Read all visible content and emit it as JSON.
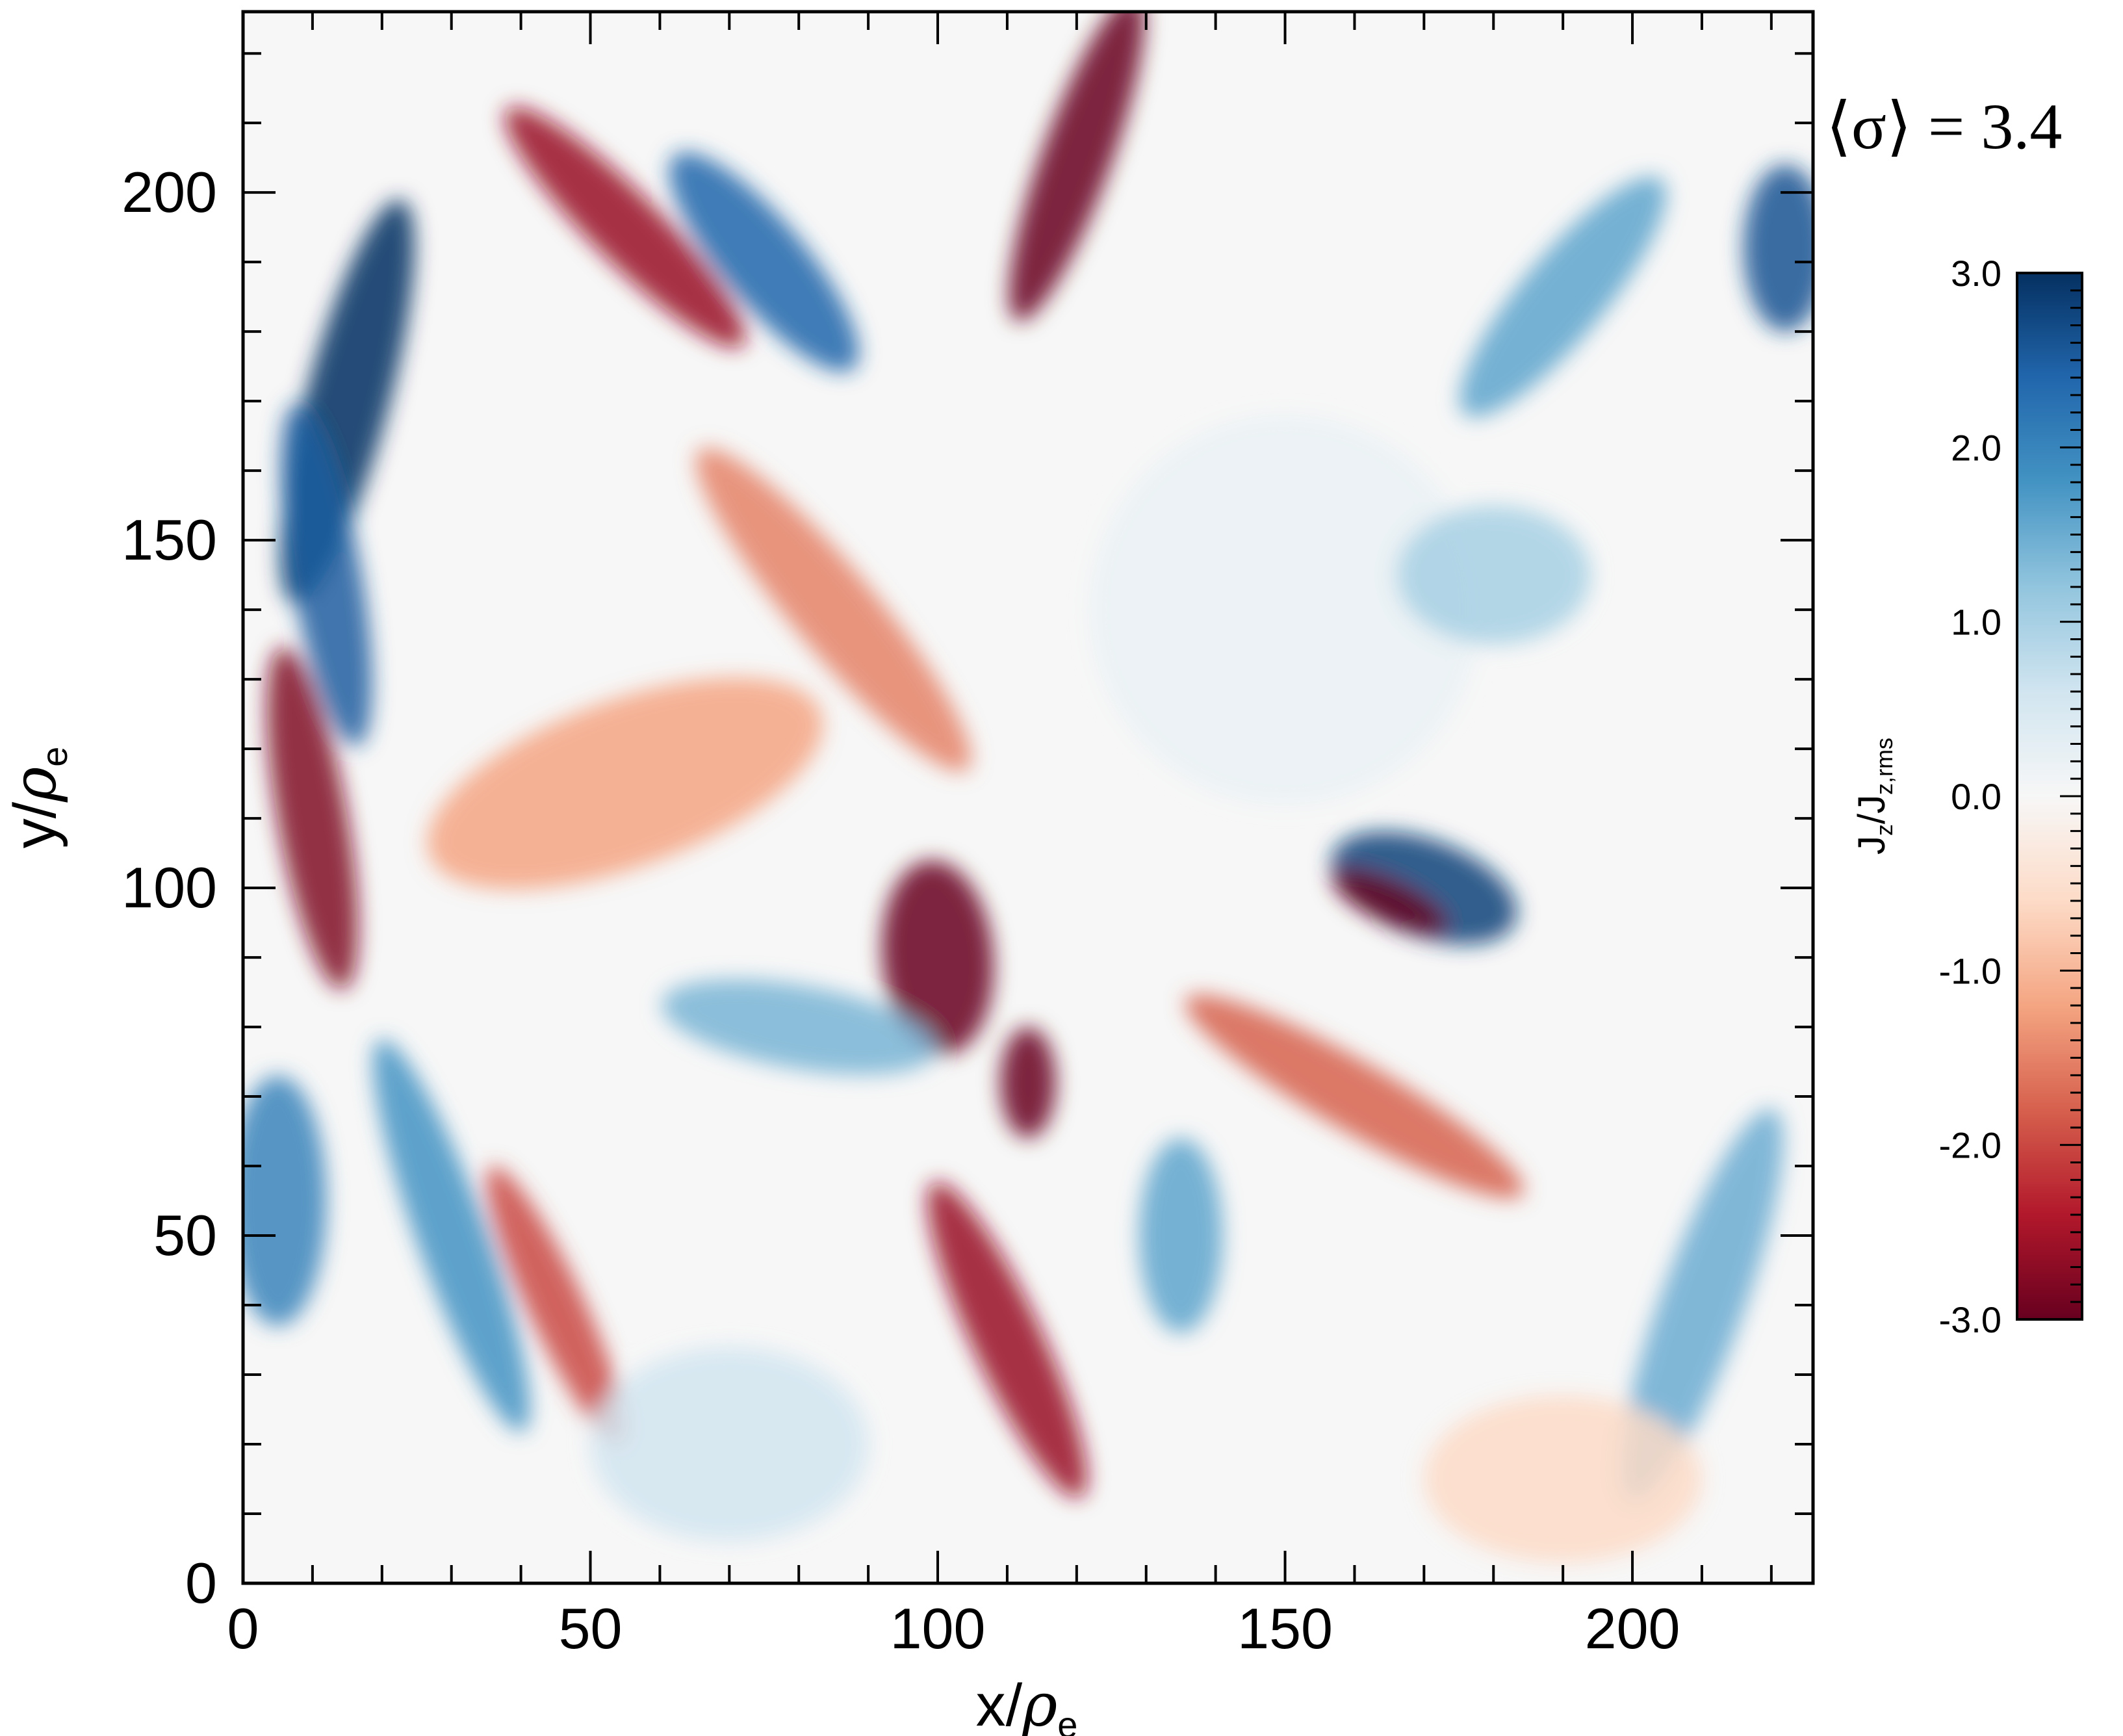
{
  "chart_data": {
    "type": "heatmap",
    "title": "",
    "xlabel": {
      "base": "x/",
      "symbol": "ρ",
      "sub": "e"
    },
    "ylabel": {
      "base": "y/",
      "symbol": "ρ",
      "sub": "e"
    },
    "xlim": [
      0,
      226
    ],
    "ylim": [
      0,
      226
    ],
    "x_ticks": [
      0,
      50,
      100,
      150,
      200
    ],
    "y_ticks": [
      0,
      50,
      100,
      150,
      200
    ],
    "x_tick_labels": [
      "0",
      "50",
      "100",
      "150",
      "200"
    ],
    "y_tick_labels": [
      "0",
      "50",
      "100",
      "150",
      "200"
    ],
    "annotation": {
      "prefix": "⟨σ⟩ = ",
      "value": "3.4"
    },
    "colorbar": {
      "label": {
        "base": "J",
        "sub1": "z",
        "mid": "/J",
        "sub2": "z,rms"
      },
      "colormap": "RdBu",
      "colors_low_to_high": [
        "#67001f",
        "#b2182b",
        "#d6604d",
        "#f4a582",
        "#fddbc7",
        "#f7f7f7",
        "#d1e5f0",
        "#92c5de",
        "#4393c3",
        "#2166ac",
        "#053061"
      ],
      "range": [
        -3.0,
        3.0
      ],
      "ticks": [
        3.0,
        2.0,
        1.0,
        0.0,
        -1.0,
        -2.0,
        -3.0
      ],
      "tick_labels": [
        "3.0",
        "2.0",
        "1.0",
        "0.0",
        "-1.0",
        "-2.0",
        "-3.0"
      ]
    },
    "features": [
      {
        "x": 120,
        "y": 205,
        "value": -3.0,
        "sx": 5,
        "sy": 25,
        "angle": -20
      },
      {
        "x": 75,
        "y": 190,
        "value": 2.4,
        "sx": 6,
        "sy": 20,
        "angle": 40
      },
      {
        "x": 55,
        "y": 195,
        "value": -2.6,
        "sx": 5,
        "sy": 24,
        "angle": 45
      },
      {
        "x": 15,
        "y": 170,
        "value": 3.0,
        "sx": 6,
        "sy": 30,
        "angle": -15
      },
      {
        "x": 12,
        "y": 145,
        "value": 2.5,
        "sx": 5,
        "sy": 25,
        "angle": 10
      },
      {
        "x": 10,
        "y": 110,
        "value": -2.8,
        "sx": 5,
        "sy": 25,
        "angle": 10
      },
      {
        "x": 55,
        "y": 115,
        "value": -1.2,
        "sx": 12,
        "sy": 30,
        "angle": -70
      },
      {
        "x": 100,
        "y": 90,
        "value": -3.0,
        "sx": 8,
        "sy": 14,
        "angle": 5
      },
      {
        "x": 113,
        "y": 72,
        "value": -3.0,
        "sx": 4,
        "sy": 8,
        "angle": 0
      },
      {
        "x": 110,
        "y": 35,
        "value": -2.6,
        "sx": 5,
        "sy": 25,
        "angle": 25
      },
      {
        "x": 45,
        "y": 40,
        "value": -2.0,
        "sx": 4,
        "sy": 22,
        "angle": 25
      },
      {
        "x": 30,
        "y": 50,
        "value": 1.8,
        "sx": 5,
        "sy": 30,
        "angle": 20
      },
      {
        "x": 5,
        "y": 55,
        "value": 2.0,
        "sx": 7,
        "sy": 18,
        "angle": 0
      },
      {
        "x": 170,
        "y": 100,
        "value": 2.8,
        "sx": 14,
        "sy": 7,
        "angle": -20
      },
      {
        "x": 165,
        "y": 98,
        "value": -3.0,
        "sx": 9,
        "sy": 3,
        "angle": -25
      },
      {
        "x": 160,
        "y": 70,
        "value": -1.8,
        "sx": 5,
        "sy": 28,
        "angle": 60
      },
      {
        "x": 190,
        "y": 185,
        "value": 1.6,
        "sx": 6,
        "sy": 22,
        "angle": -40
      },
      {
        "x": 222,
        "y": 192,
        "value": 2.6,
        "sx": 6,
        "sy": 12,
        "angle": 0
      },
      {
        "x": 150,
        "y": 140,
        "value": 0.2,
        "sx": 28,
        "sy": 28,
        "angle": 0
      },
      {
        "x": 180,
        "y": 145,
        "value": 1.0,
        "sx": 14,
        "sy": 10,
        "angle": 0
      },
      {
        "x": 85,
        "y": 140,
        "value": -1.5,
        "sx": 6,
        "sy": 30,
        "angle": 40
      },
      {
        "x": 80,
        "y": 80,
        "value": 1.4,
        "sx": 6,
        "sy": 20,
        "angle": 80
      },
      {
        "x": 210,
        "y": 40,
        "value": 1.5,
        "sx": 6,
        "sy": 30,
        "angle": -20
      },
      {
        "x": 135,
        "y": 50,
        "value": 1.6,
        "sx": 6,
        "sy": 14,
        "angle": 0
      },
      {
        "x": 70,
        "y": 20,
        "value": 0.6,
        "sx": 20,
        "sy": 14,
        "angle": 0
      },
      {
        "x": 190,
        "y": 15,
        "value": -0.6,
        "sx": 20,
        "sy": 12,
        "angle": 0
      }
    ]
  }
}
